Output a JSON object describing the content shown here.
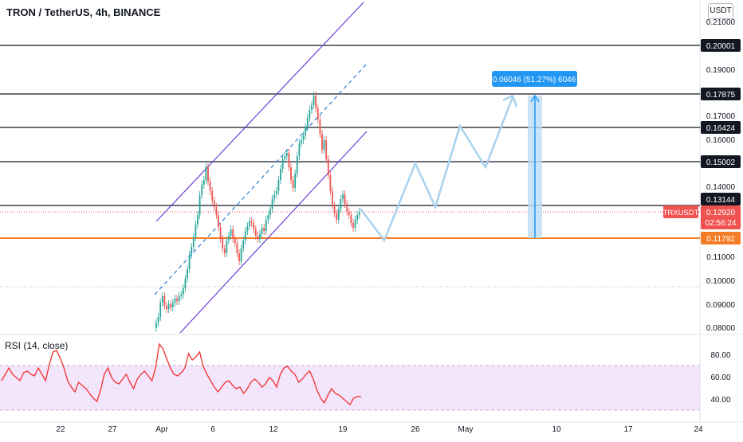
{
  "header": {
    "title": "TRON / TetherUS, 4h, BINANCE",
    "currency": "USDT"
  },
  "rsi": {
    "label": "RSI (14, close)",
    "ticks": [
      "80.00",
      "60.00",
      "40.00"
    ]
  },
  "price_axis": {
    "ticks": [
      "0.21000",
      "0.20001",
      "0.19000",
      "0.17875",
      "0.17000",
      "0.16424",
      "0.16000",
      "0.15002",
      "0.14000",
      "0.13144",
      "0.12920",
      "0.11792",
      "0.11000",
      "0.10000",
      "0.09000",
      "0.08000"
    ]
  },
  "horizontal_levels": [
    "0.20001",
    "0.17875",
    "0.16424",
    "0.15002",
    "0.13144",
    "0.11792"
  ],
  "current_price": {
    "symbol": "TRXUSDT",
    "value": "0.12920",
    "countdown": "02:56:24"
  },
  "measure_label": "0.06046 (51.27%) 6046",
  "time_axis": {
    "labels": [
      "22",
      "27",
      "Apr",
      "6",
      "12",
      "19",
      "26",
      "May",
      "10",
      "17",
      "24"
    ]
  },
  "colors": {
    "up": "#26a69a",
    "down": "#ef5350",
    "projection": "#a6d0ea",
    "support": "#f57c26",
    "channel": "#6a3fd6",
    "rsi_line": "#ef3b3b",
    "rsi_band": "#f0e0fa"
  }
}
